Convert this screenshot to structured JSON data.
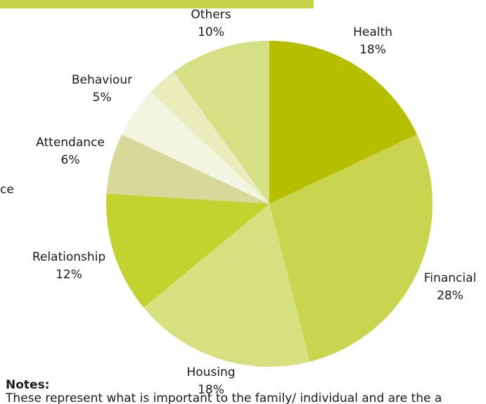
{
  "chart_data": {
    "type": "pie",
    "categories": [
      "Health",
      "Financial",
      "Housing",
      "Relationship",
      "Attendance",
      "Behaviour",
      "ce",
      "Others"
    ],
    "values": [
      18,
      28,
      18,
      12,
      6,
      5,
      3,
      10
    ],
    "value_labels": [
      "18%",
      "28%",
      "18%",
      "12%",
      "6%",
      "5%",
      null,
      "10%"
    ],
    "colors": [
      "#b5bf00",
      "#c9d54f",
      "#d5e07f",
      "#c2d22e",
      "#d8d89a",
      "#f2f6e0",
      "#e8edbb",
      "#d5e085"
    ],
    "notes": {
      "title": "Notes:",
      "text": "These represent what is important to the family/ individual and are the a"
    }
  }
}
